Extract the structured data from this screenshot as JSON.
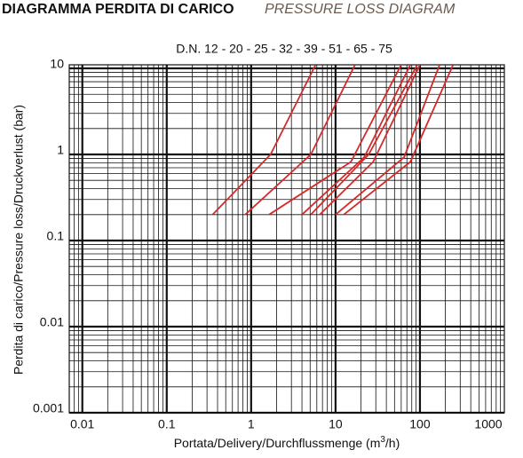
{
  "chart_data": {
    "type": "line",
    "title": "DIAGRAMMA PERDITA DI CARICO",
    "title_en": "PRESSURE LOSS DIAGRAM",
    "subtitle": "D.N. 12 - 20 - 25 - 32 - 39 - 51 - 65 - 75",
    "ylabel": "Perdita di carico/Pressure loss/Druckverlust (bar)",
    "xlabel": [
      "Portata/Delivery/Durchflussmenge (m",
      "3",
      "/h)"
    ],
    "xscale": "log",
    "yscale": "log",
    "grid": true,
    "xlim": [
      0.007,
      1000
    ],
    "ylim": [
      0.001,
      11
    ],
    "xticks": [
      0.01,
      0.1,
      1,
      10,
      100,
      1000
    ],
    "yticks": [
      0.001,
      0.01,
      0.1,
      1,
      10
    ],
    "series": [
      {
        "color": "#d42a2a",
        "x": [
          0.35,
          1.7,
          5.8
        ],
        "values": [
          0.2,
          1.0,
          11
        ]
      },
      {
        "color": "#d42a2a",
        "x": [
          0.85,
          5.1,
          17
        ],
        "values": [
          0.2,
          1.0,
          11
        ]
      },
      {
        "color": "#d42a2a",
        "x": [
          1.63,
          15.2,
          60
        ],
        "values": [
          0.2,
          0.82,
          11
        ]
      },
      {
        "color": "#d42a2a",
        "x": [
          4.0,
          21.9,
          77
        ],
        "values": [
          0.2,
          0.93,
          11
        ]
      },
      {
        "color": "#d42a2a",
        "x": [
          5.1,
          24.7,
          93
        ],
        "values": [
          0.2,
          1.0,
          11
        ]
      },
      {
        "color": "#d42a2a",
        "x": [
          6.5,
          27.9,
          100
        ],
        "values": [
          0.2,
          0.82,
          11
        ]
      },
      {
        "color": "#d42a2a",
        "x": [
          10,
          65,
          171
        ],
        "values": [
          0.2,
          0.93,
          11
        ]
      },
      {
        "color": "#d42a2a",
        "x": [
          12.5,
          77,
          247
        ],
        "values": [
          0.2,
          0.82,
          11
        ]
      }
    ]
  }
}
